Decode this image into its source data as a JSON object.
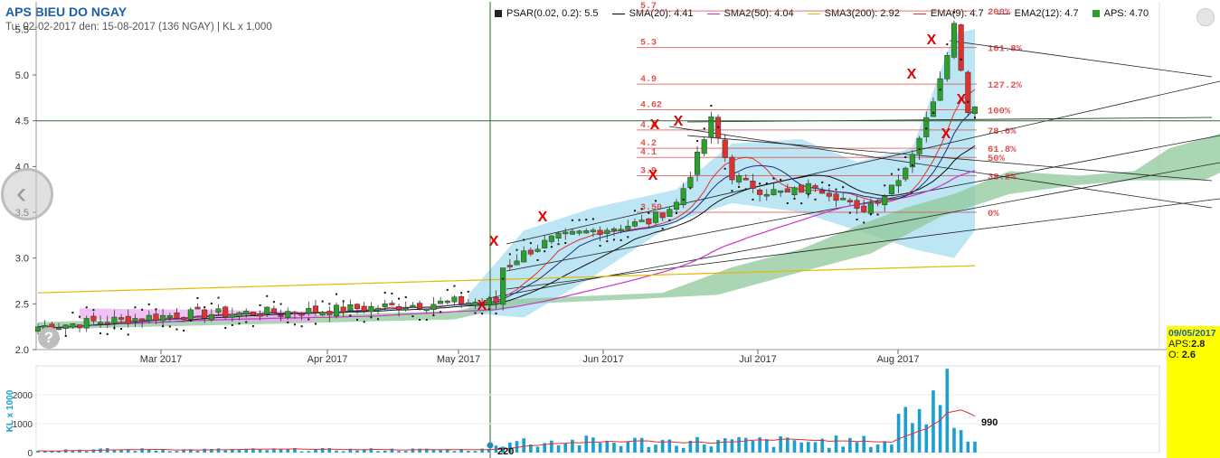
{
  "header": {
    "title": "APS BIEU DO NGAY",
    "subtitle": "Tu: 02-02-2017 den: 15-08-2017 (136 NGAY) | KL x 1,000"
  },
  "legend": [
    {
      "name": "PSAR(0.02, 0.2): 5.5",
      "kind": "box",
      "color": "#222222"
    },
    {
      "name": "SMA(20): 4.41",
      "kind": "line",
      "color": "#000000"
    },
    {
      "name": "SMA2(50): 4.04",
      "kind": "line",
      "color": "#cc33cc"
    },
    {
      "name": "SMA3(200): 2.92",
      "kind": "line",
      "color": "#e6b800"
    },
    {
      "name": "EMA(9): 4.7",
      "kind": "line",
      "color": "#e03030"
    },
    {
      "name": "EMA2(12): 4.7",
      "kind": "line",
      "color": "#1e2a8a"
    },
    {
      "name": "APS: 4.70",
      "kind": "box",
      "color": "#2ca02c"
    }
  ],
  "tooltip": {
    "date": "09/05/2017",
    "aps_label": "APS:",
    "aps_value": "2.8",
    "o_label": "O:",
    "o_value": "2.6"
  },
  "colors": {
    "up": "#2ca02c",
    "down": "#e03030",
    "axis": "#444444",
    "volume": "#1a9fd0",
    "cloud": "#9fdcf0",
    "kumo": "#8fc89a",
    "fib": "#e05050"
  },
  "chart_data": [
    {
      "type": "candlestick",
      "title": "APS BIEU DO NGAY",
      "ylim": [
        2.0,
        5.8
      ],
      "yticks": [
        "2.0",
        "2.5",
        "3.0",
        "3.5",
        "4.0",
        "4.5",
        "5.0",
        "5.5"
      ],
      "xticks": [
        "Mar 2017",
        "Apr 2017",
        "May 2017",
        "Jun 2017",
        "Jul 2017",
        "Aug 2017"
      ],
      "fib_levels": [
        {
          "price": "5.7",
          "pct": "200%"
        },
        {
          "price": "5.3",
          "pct": "161.8%"
        },
        {
          "price": "4.9",
          "pct": "127.2%"
        },
        {
          "price": "4.62",
          "pct": "100%"
        },
        {
          "price": "4.4",
          "pct": "78.6%"
        },
        {
          "price": "4.2",
          "pct": "61.8%"
        },
        {
          "price": "4.1",
          "pct": "50%"
        },
        {
          "price": "3.9",
          "pct": "38.2%"
        },
        {
          "price": "3.50",
          "pct": "0%"
        }
      ],
      "marks": [
        "X"
      ],
      "crosshair_price": 4.5
    },
    {
      "type": "bar",
      "ylabel": "KL x 1000",
      "ylim": [
        0,
        3000
      ],
      "yticks": [
        "0",
        "1000",
        "2000"
      ],
      "labels": [
        "990",
        "220"
      ]
    }
  ]
}
